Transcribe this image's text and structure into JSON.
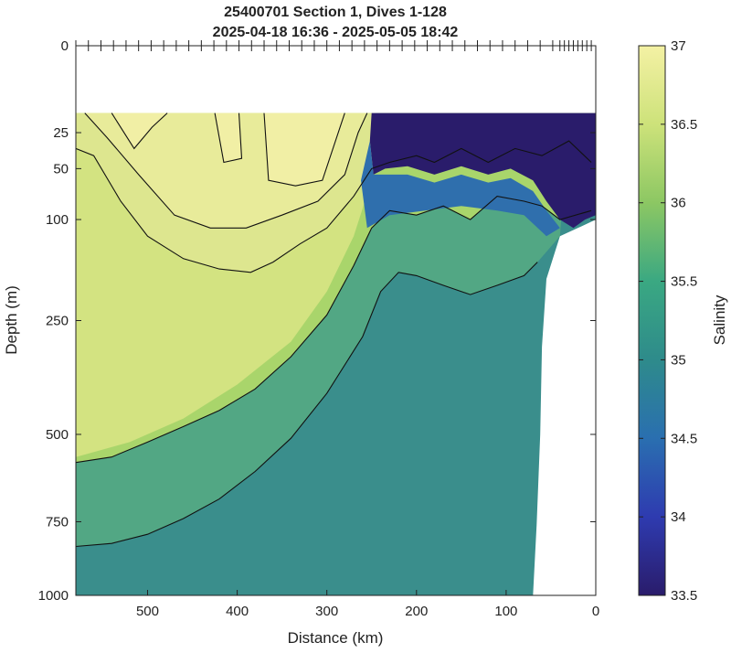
{
  "chart_data": {
    "type": "heatmap",
    "title_line1": "25400701 Section 1, Dives 1-128",
    "title_line2": "2025-04-18 16:36 - 2025-05-05 18:42",
    "xlabel": "Distance (km)",
    "ylabel": "Depth (m)",
    "colorbar_label": "Salinity",
    "xlim": [
      580,
      0
    ],
    "x_reversed": true,
    "ylim": [
      0,
      1000
    ],
    "y_scale": "sqrt",
    "x_ticks": [
      500,
      400,
      300,
      200,
      100,
      0
    ],
    "y_ticks": [
      0,
      25,
      50,
      100,
      250,
      500,
      750,
      1000
    ],
    "color_range": [
      33.5,
      37
    ],
    "colorbar_ticks": [
      33.5,
      34,
      34.5,
      35,
      35.5,
      36,
      36.5,
      37
    ],
    "colormap": [
      "#2a1c6b",
      "#2e3bb0",
      "#2a6fb0",
      "#2e8b8b",
      "#3aa882",
      "#8cc763",
      "#cde27a",
      "#f4f1a4"
    ],
    "no_data_above_depth": 15,
    "contour_levels": [
      35.5,
      36,
      36.4,
      36.6,
      36.8
    ],
    "contours": [
      {
        "level": 35.5,
        "points": [
          [
            580,
            830
          ],
          [
            540,
            820
          ],
          [
            500,
            790
          ],
          [
            460,
            740
          ],
          [
            420,
            680
          ],
          [
            380,
            600
          ],
          [
            340,
            510
          ],
          [
            300,
            400
          ],
          [
            260,
            280
          ],
          [
            240,
            200
          ],
          [
            220,
            170
          ],
          [
            200,
            175
          ],
          [
            170,
            190
          ],
          [
            140,
            205
          ],
          [
            110,
            190
          ],
          [
            80,
            175
          ],
          [
            65,
            155
          ]
        ]
      },
      {
        "level": 36,
        "points": [
          [
            580,
            575
          ],
          [
            540,
            560
          ],
          [
            500,
            520
          ],
          [
            460,
            480
          ],
          [
            420,
            440
          ],
          [
            380,
            390
          ],
          [
            340,
            320
          ],
          [
            300,
            240
          ],
          [
            270,
            160
          ],
          [
            250,
            110
          ],
          [
            230,
            90
          ],
          [
            200,
            95
          ],
          [
            170,
            85
          ],
          [
            140,
            100
          ],
          [
            110,
            75
          ],
          [
            80,
            80
          ],
          [
            60,
            85
          ],
          [
            40,
            100
          ],
          [
            5,
            90
          ]
        ]
      },
      {
        "level": 36.4,
        "points": [
          [
            580,
            35
          ],
          [
            560,
            40
          ],
          [
            530,
            80
          ],
          [
            500,
            120
          ],
          [
            460,
            150
          ],
          [
            420,
            165
          ],
          [
            385,
            170
          ],
          [
            360,
            155
          ],
          [
            330,
            130
          ],
          [
            300,
            110
          ],
          [
            270,
            75
          ],
          [
            250,
            50
          ],
          [
            230,
            45
          ],
          [
            200,
            40
          ],
          [
            180,
            45
          ],
          [
            150,
            35
          ],
          [
            120,
            45
          ],
          [
            90,
            35
          ],
          [
            60,
            40
          ],
          [
            30,
            30
          ],
          [
            5,
            45
          ]
        ]
      },
      {
        "level": 36.6,
        "points": [
          [
            570,
            15
          ],
          [
            545,
            28
          ],
          [
            510,
            55
          ],
          [
            470,
            95
          ],
          [
            430,
            110
          ],
          [
            390,
            110
          ],
          [
            350,
            95
          ],
          [
            310,
            80
          ],
          [
            280,
            55
          ],
          [
            265,
            25
          ],
          [
            255,
            15
          ]
        ]
      },
      {
        "level": 36.8,
        "points": [
          [
            370,
            15
          ],
          [
            365,
            60
          ],
          [
            335,
            65
          ],
          [
            305,
            60
          ],
          [
            280,
            15
          ]
        ]
      },
      {
        "level": 36.8,
        "points": [
          [
            425,
            15
          ],
          [
            415,
            45
          ],
          [
            395,
            42
          ],
          [
            398,
            15
          ]
        ]
      },
      {
        "level": 36.8,
        "points": [
          [
            540,
            15
          ],
          [
            515,
            35
          ],
          [
            495,
            22
          ],
          [
            478,
            15
          ]
        ]
      }
    ],
    "dives_x_km": [
      580,
      566,
      552,
      538,
      524,
      510,
      496,
      482,
      468,
      454,
      440,
      426,
      412,
      398,
      384,
      370,
      356,
      342,
      328,
      314,
      300,
      286,
      272,
      258,
      244,
      230,
      216,
      202,
      188,
      174,
      160,
      146,
      132,
      118,
      104,
      90,
      76,
      62,
      48,
      40,
      35,
      30,
      25,
      20,
      15,
      10,
      5
    ]
  }
}
